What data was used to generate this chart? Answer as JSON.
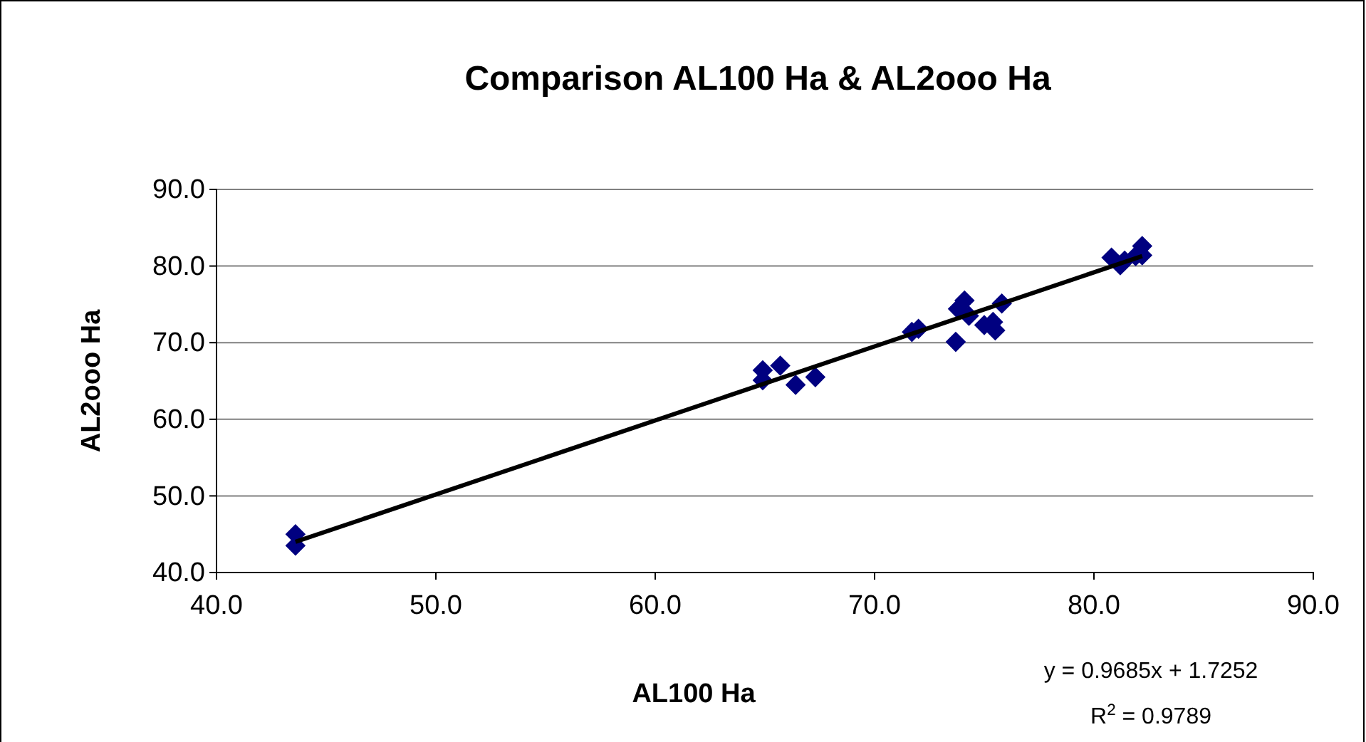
{
  "chart_data": {
    "type": "scatter",
    "title": "Comparison AL100 Ha & AL2ooo Ha",
    "xlabel": "AL100 Ha",
    "ylabel": "AL2ooo Ha",
    "xlim": [
      40,
      90
    ],
    "ylim": [
      40,
      90
    ],
    "xticks": [
      {
        "value": 40,
        "label": "40.0"
      },
      {
        "value": 50,
        "label": "50.0"
      },
      {
        "value": 60,
        "label": "60.0"
      },
      {
        "value": 70,
        "label": "70.0"
      },
      {
        "value": 80,
        "label": "80.0"
      },
      {
        "value": 90,
        "label": "90.0"
      }
    ],
    "yticks": [
      {
        "value": 40,
        "label": "40.0"
      },
      {
        "value": 50,
        "label": "50.0"
      },
      {
        "value": 60,
        "label": "60.0"
      },
      {
        "value": 70,
        "label": "70.0"
      },
      {
        "value": 80,
        "label": "80.0"
      },
      {
        "value": 90,
        "label": "90.0"
      }
    ],
    "grid": "y",
    "series": [
      {
        "color": "#000080",
        "marker": "diamond",
        "x": [
          43.6,
          43.6,
          64.9,
          64.9,
          65.7,
          66.4,
          67.3,
          71.7,
          72.0,
          73.7,
          73.8,
          74.1,
          74.3,
          75.0,
          75.4,
          75.5,
          75.8,
          80.8,
          81.2,
          81.4,
          81.9,
          82.2,
          82.2
        ],
        "values": [
          45.0,
          43.5,
          66.4,
          65.1,
          67.0,
          64.5,
          65.5,
          71.4,
          71.8,
          70.1,
          74.4,
          75.5,
          73.5,
          72.3,
          72.7,
          71.6,
          75.1,
          81.1,
          80.1,
          80.7,
          81.3,
          82.6,
          81.4
        ]
      },
      {
        "type": "line",
        "color": "#000000",
        "x": [
          43.6,
          82.2
        ],
        "values": [
          44.0,
          81.3
        ],
        "marker": "none"
      }
    ],
    "annotations": [
      "y = 0.9685x + 1.7252",
      "R$^{2}$ = 0.9789"
    ]
  }
}
